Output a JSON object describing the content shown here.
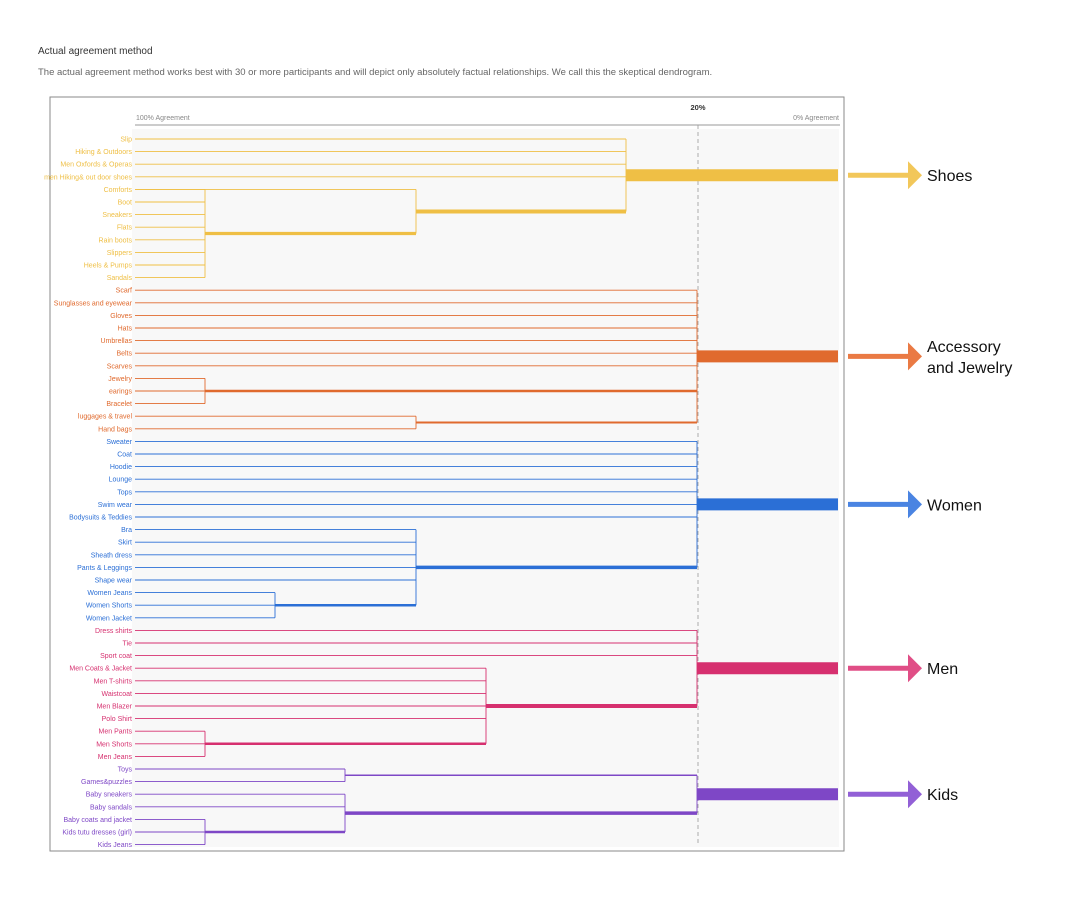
{
  "page": {
    "heading": "Actual agreement method",
    "description": "The actual agreement method works best with 30 or more participants and will depict only absolutely factual relationships. We call this the skeptical dendrogram."
  },
  "axis": {
    "left_label": "100% Agreement",
    "right_label": "0% Agreement",
    "marker_label": "20%",
    "marker_value": 20
  },
  "colors": {
    "shoes": "#efbf45",
    "accessory": "#e06a2e",
    "women": "#2b6fd6",
    "men": "#d6306f",
    "kids": "#7e47c6",
    "arrow_shoes": "#f2c75a",
    "arrow_accessory": "#ea7a44",
    "arrow_women": "#4a84e2",
    "arrow_men": "#e04e86",
    "arrow_kids": "#9260d6"
  },
  "groups": [
    {
      "key": "shoes",
      "label": "Shoes",
      "items": [
        "Slip",
        "Hiking & Outdoors",
        "Men Oxfords & Operas",
        "men Hiking& out door shoes",
        "Comforts",
        "Boot",
        "Sneakers",
        "Flats",
        "Rain boots",
        "Slippers",
        "Heels & Pumps",
        "Sandals"
      ]
    },
    {
      "key": "accessory",
      "label": "Accessory and Jewelry",
      "items": [
        "Scarf",
        "Sunglasses and eyewear",
        "Gloves",
        "Hats",
        "Umbrellas",
        "Belts",
        "Scarves",
        "Jewelry",
        "earings",
        "Bracelet",
        "luggages & travel",
        "Hand bags"
      ]
    },
    {
      "key": "women",
      "label": "Women",
      "items": [
        "Sweater",
        "Coat",
        "Hoodie",
        "Lounge",
        "Tops",
        "Swim wear",
        "Bodysuits & Teddies",
        "Bra",
        "Skirt",
        "Sheath dress",
        "Pants & Leggings",
        "Shape wear",
        "Women Jeans",
        "Women Shorts",
        "Women Jacket"
      ]
    },
    {
      "key": "men",
      "label": "Men",
      "items": [
        "Dress shirts",
        "Tie",
        "Sport coat",
        "Men Coats & Jacket",
        "Men T-shirts",
        "Waistcoat",
        "Men Blazer",
        "Polo Shirt",
        "Men Pants",
        "Men Shorts",
        "Men Jeans"
      ]
    },
    {
      "key": "kids",
      "label": "Kids",
      "items": [
        "Toys",
        "Games&puzzles",
        "Baby sneakers",
        "Baby sandals",
        "Baby coats and jacket",
        "Kids tutu dresses (girl)",
        "Kids Jeans"
      ]
    }
  ]
}
